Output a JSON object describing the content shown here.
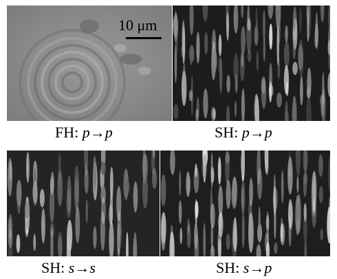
{
  "scale": {
    "label": "10 μm"
  },
  "panels": [
    {
      "label_prefix": "FH:",
      "label_from": "p",
      "arrow": "→",
      "label_to": "p"
    },
    {
      "label_prefix": "SH:",
      "label_from": "p",
      "arrow": "→",
      "label_to": "p"
    },
    {
      "label_prefix": "SH:",
      "label_from": "s",
      "arrow": "→",
      "label_to": "s"
    },
    {
      "label_prefix": "SH:",
      "label_from": "s",
      "arrow": "→",
      "label_to": "p"
    }
  ]
}
